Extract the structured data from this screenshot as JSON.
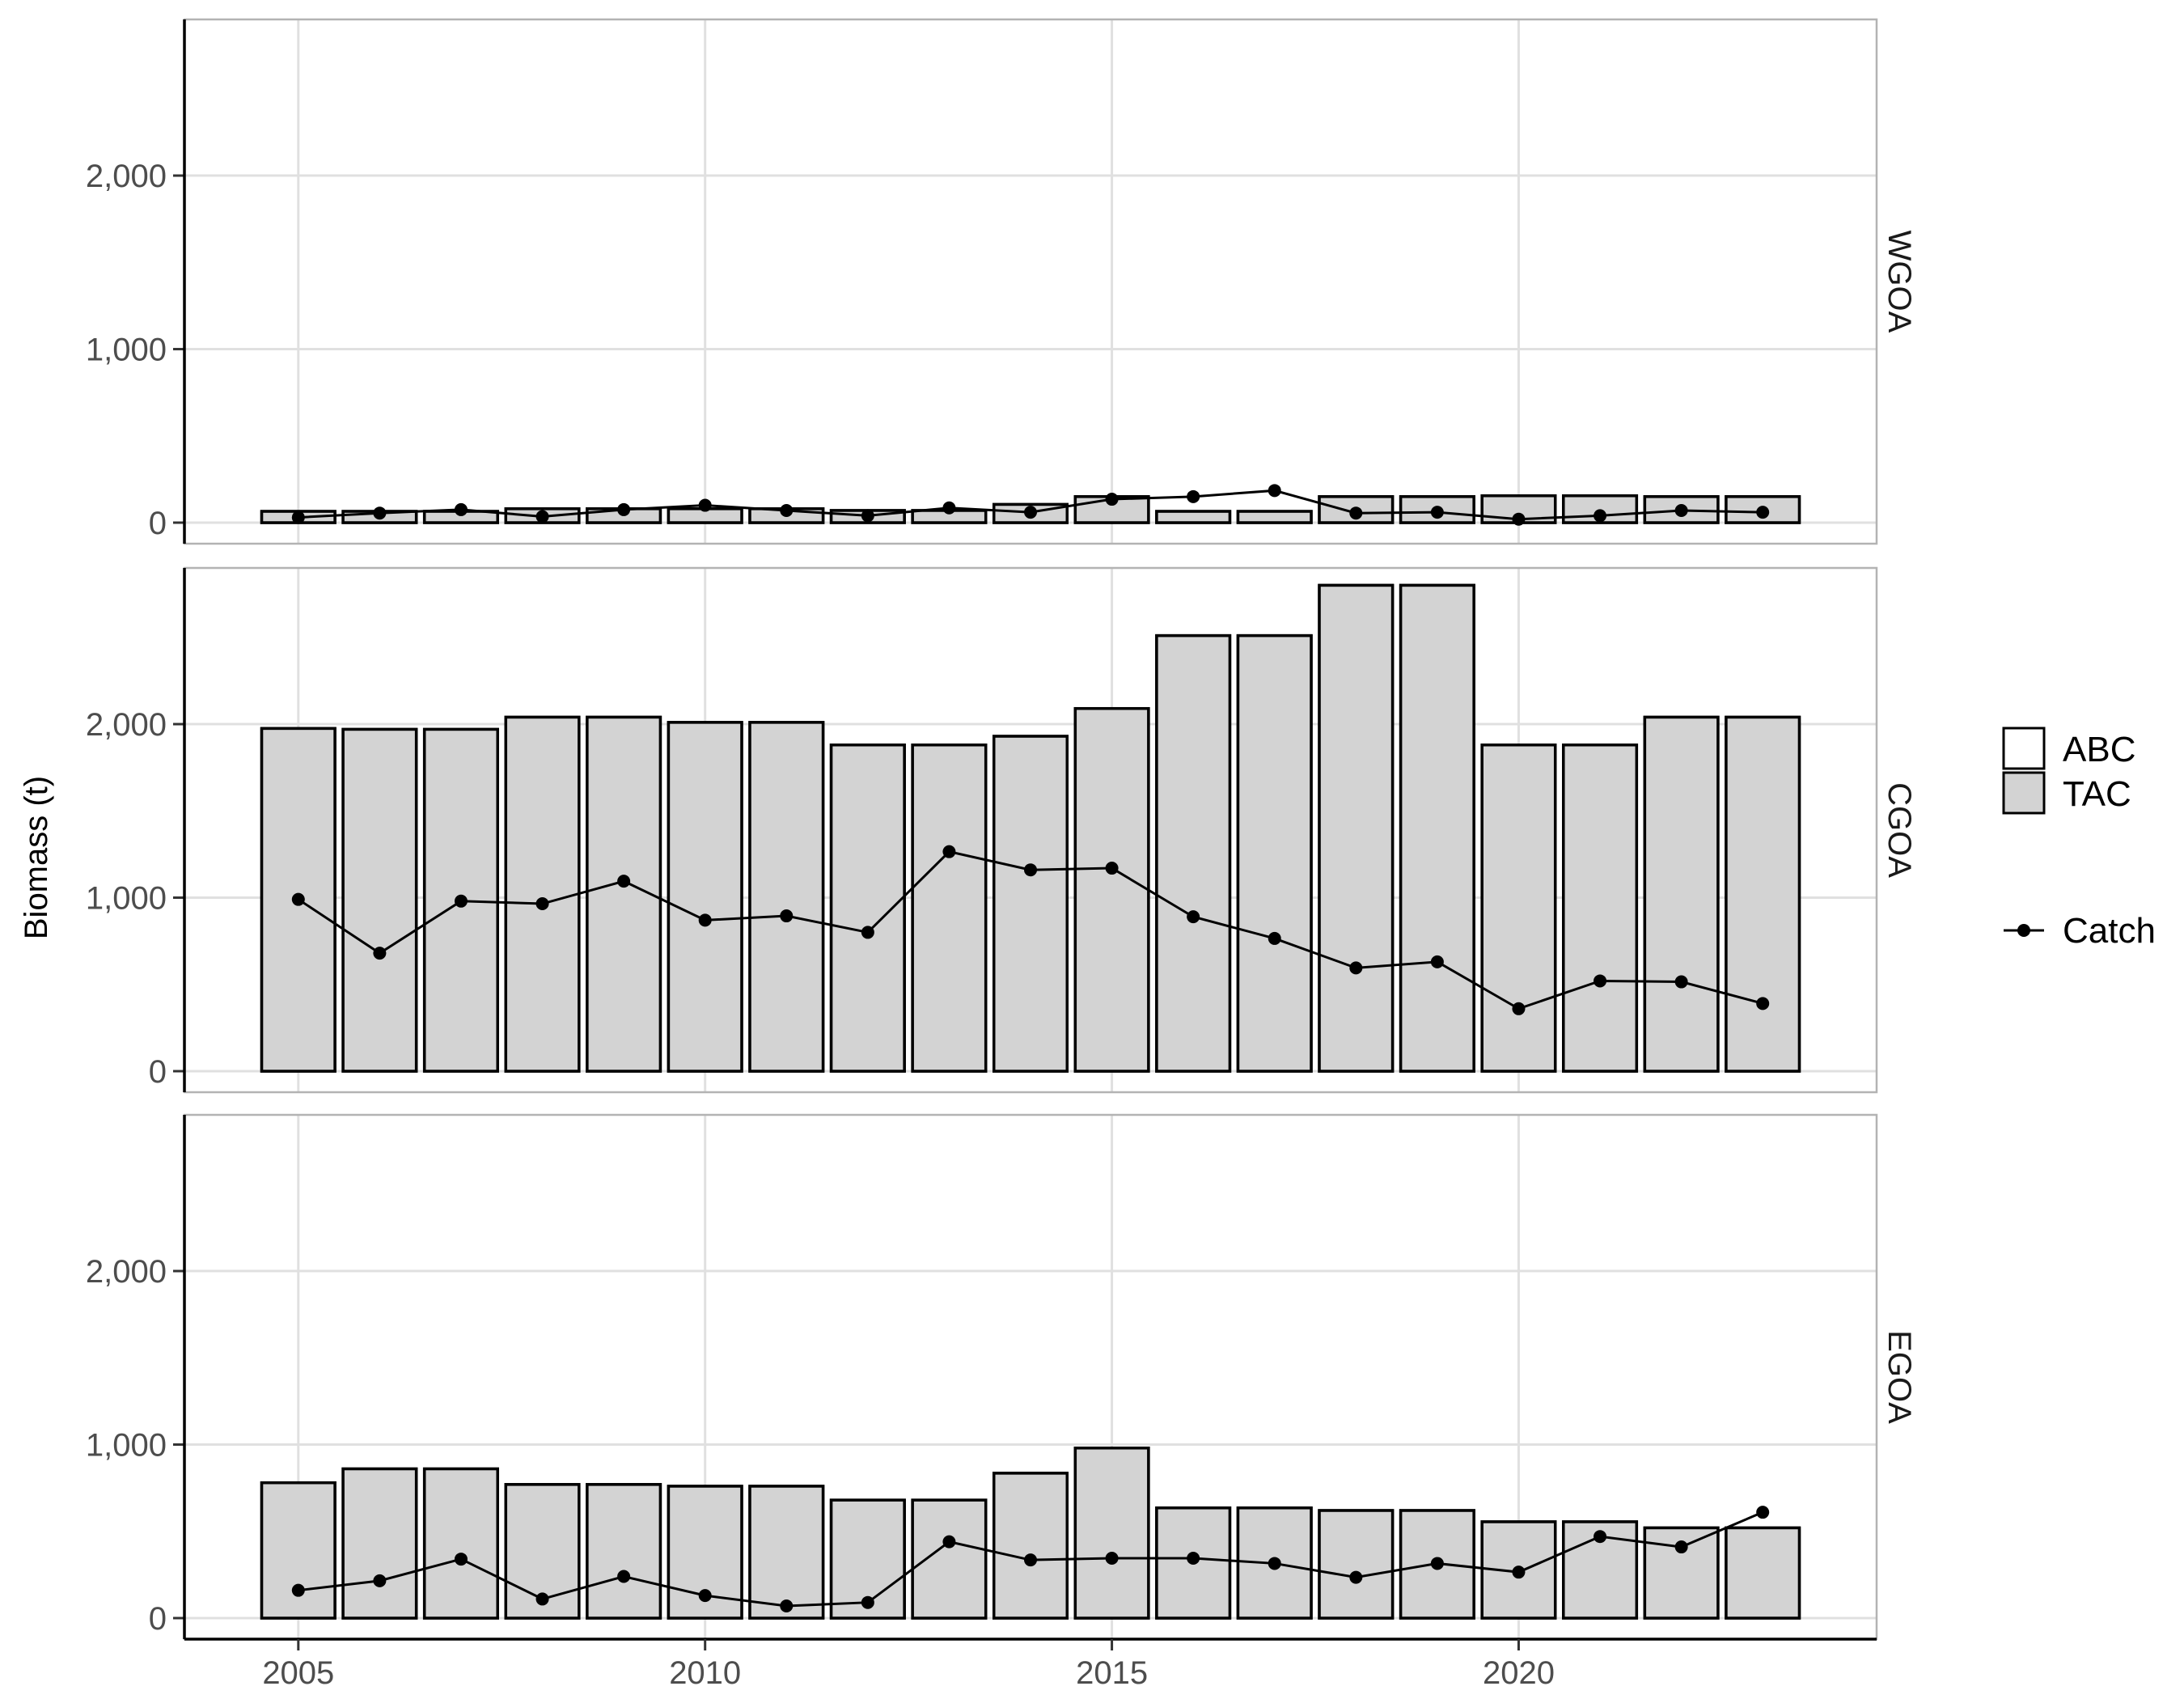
{
  "chart_data": {
    "type": "bar",
    "ylabel": "Biomass (t)",
    "xlabel": "",
    "x_ticks": [
      "2005",
      "2010",
      "2015",
      "2020"
    ],
    "y_ticks": [
      "0",
      "1,000",
      "2,000"
    ],
    "ylim": [
      0,
      2900
    ],
    "xlim": [
      2003.6,
      2024.4
    ],
    "grid": true,
    "legend_position": "right",
    "legend": {
      "abc_label": "ABC",
      "tac_label": "TAC",
      "catch_label": "Catch"
    },
    "colors": {
      "abc_fill": "#ffffff",
      "tac_fill": "#d3d3d3",
      "outline": "#000000",
      "catch": "#000000",
      "grid": "#e0e0e0",
      "panel_border": "#b3b3b3"
    },
    "years": [
      2005,
      2006,
      2007,
      2008,
      2009,
      2010,
      2011,
      2012,
      2013,
      2014,
      2015,
      2016,
      2017,
      2018,
      2019,
      2020,
      2021,
      2022,
      2023
    ],
    "panels": [
      {
        "region": "WGOA",
        "abc": [
          65,
          65,
          65,
          80,
          80,
          80,
          80,
          70,
          70,
          105,
          150,
          65,
          65,
          150,
          150,
          155,
          155,
          150,
          150
        ],
        "tac": [
          65,
          65,
          65,
          80,
          80,
          80,
          80,
          70,
          70,
          105,
          150,
          65,
          65,
          150,
          150,
          155,
          155,
          150,
          150
        ],
        "catch": [
          30,
          55,
          75,
          35,
          75,
          100,
          70,
          40,
          85,
          60,
          135,
          150,
          185,
          55,
          60,
          20,
          40,
          70,
          60
        ]
      },
      {
        "region": "CGOA",
        "abc": [
          1975,
          1970,
          1970,
          2040,
          2040,
          2010,
          2010,
          1880,
          1880,
          1930,
          2090,
          2510,
          2510,
          2800,
          2800,
          1880,
          1880,
          2040,
          2040
        ],
        "tac": [
          1975,
          1970,
          1970,
          2040,
          2040,
          2010,
          2010,
          1880,
          1880,
          1930,
          2090,
          2510,
          2510,
          2800,
          2800,
          1880,
          1880,
          2040,
          2040
        ],
        "catch": [
          990,
          680,
          980,
          965,
          1095,
          870,
          895,
          800,
          1265,
          1160,
          1170,
          890,
          765,
          595,
          630,
          360,
          520,
          515,
          390
        ]
      },
      {
        "region": "EGOA",
        "abc": [
          780,
          860,
          860,
          770,
          770,
          760,
          760,
          680,
          680,
          835,
          980,
          635,
          635,
          620,
          620,
          555,
          555,
          520,
          520
        ],
        "tac": [
          780,
          860,
          860,
          770,
          770,
          760,
          760,
          680,
          680,
          835,
          980,
          635,
          635,
          620,
          620,
          555,
          555,
          520,
          520
        ],
        "catch": [
          160,
          215,
          340,
          110,
          240,
          130,
          70,
          90,
          440,
          335,
          345,
          345,
          315,
          235,
          315,
          265,
          470,
          410,
          610
        ]
      }
    ]
  }
}
